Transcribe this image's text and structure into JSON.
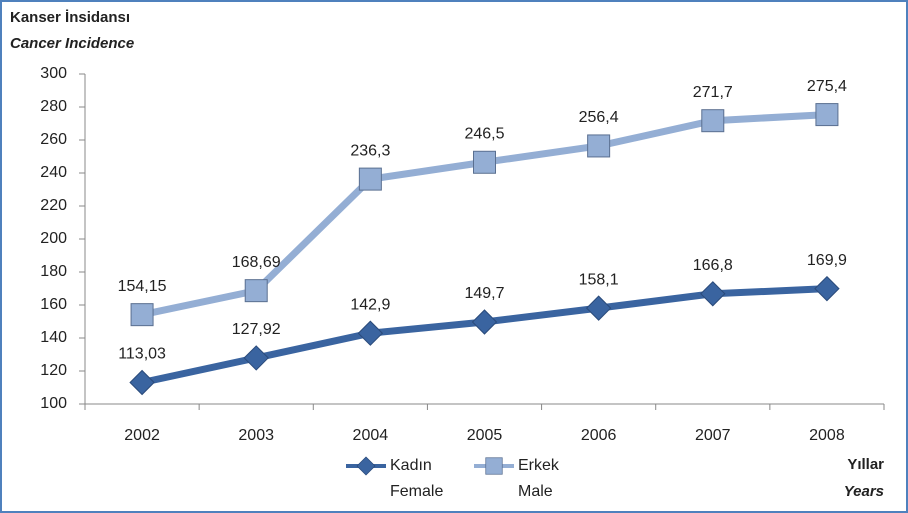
{
  "chart_data": {
    "type": "line",
    "y_title": "Kanser İnsidansı",
    "y_title_en": "Cancer Incidence",
    "x_title": "Yıllar",
    "x_title_en": "Years",
    "categories": [
      "2002",
      "2003",
      "2004",
      "2005",
      "2006",
      "2007",
      "2008"
    ],
    "series": [
      {
        "name": "Kadın",
        "name_en": "Female",
        "color": "#3a64a0",
        "marker": "diamond",
        "values": [
          113.03,
          127.92,
          142.9,
          149.7,
          158.1,
          166.8,
          169.9
        ],
        "value_labels": [
          "113,03",
          "127,92",
          "142,9",
          "149,7",
          "158,1",
          "166,8",
          "169,9"
        ]
      },
      {
        "name": "Erkek",
        "name_en": "Male",
        "color": "#94aed4",
        "marker": "square",
        "values": [
          154.15,
          168.69,
          236.3,
          246.5,
          256.4,
          271.7,
          275.4
        ],
        "value_labels": [
          "154,15",
          "168,69",
          "236,3",
          "246,5",
          "256,4",
          "271,7",
          "275,4"
        ]
      }
    ],
    "ylim": [
      100,
      300
    ],
    "yticks": [
      100,
      120,
      140,
      160,
      180,
      200,
      220,
      240,
      260,
      280,
      300
    ],
    "grid": false
  }
}
